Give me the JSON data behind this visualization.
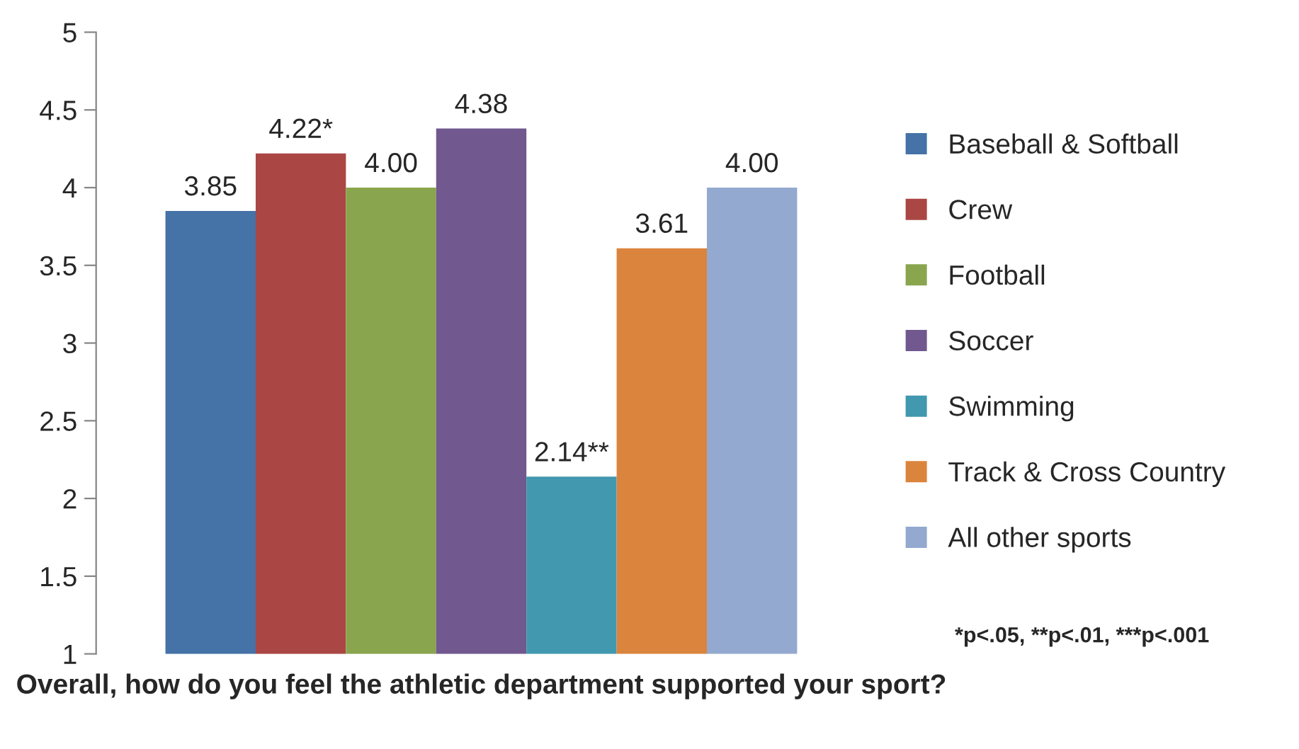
{
  "chart_data": {
    "type": "bar",
    "categories": [
      null
    ],
    "xlabel": "Overall, how do you feel the athletic department supported your sport?",
    "series": [
      {
        "name": "Baseball & Softball",
        "color": "#4572a7",
        "values": [
          3.85
        ],
        "value_labels": [
          "3.85"
        ]
      },
      {
        "name": "Crew",
        "color": "#aa4643",
        "values": [
          4.22
        ],
        "value_labels": [
          "4.22*"
        ]
      },
      {
        "name": "Football",
        "color": "#89a54e",
        "values": [
          4.0
        ],
        "value_labels": [
          "4.00"
        ]
      },
      {
        "name": "Soccer",
        "color": "#71588f",
        "values": [
          4.38
        ],
        "value_labels": [
          "4.38"
        ]
      },
      {
        "name": "Swimming",
        "color": "#4198af",
        "values": [
          2.14
        ],
        "value_labels": [
          "2.14**"
        ]
      },
      {
        "name": "Track & Cross Country",
        "color": "#db843d",
        "values": [
          3.61
        ],
        "value_labels": [
          "3.61"
        ]
      },
      {
        "name": "All other sports",
        "color": "#93a9cf",
        "values": [
          4.0
        ],
        "value_labels": [
          "4.00"
        ]
      }
    ],
    "ylim": [
      1,
      5
    ],
    "yticks": [
      1,
      1.5,
      2,
      2.5,
      3,
      3.5,
      4,
      4.5,
      5
    ],
    "grid": false,
    "legend": "right",
    "annotations": [
      "*p<.05, **p<.01, ***p<.001"
    ]
  }
}
